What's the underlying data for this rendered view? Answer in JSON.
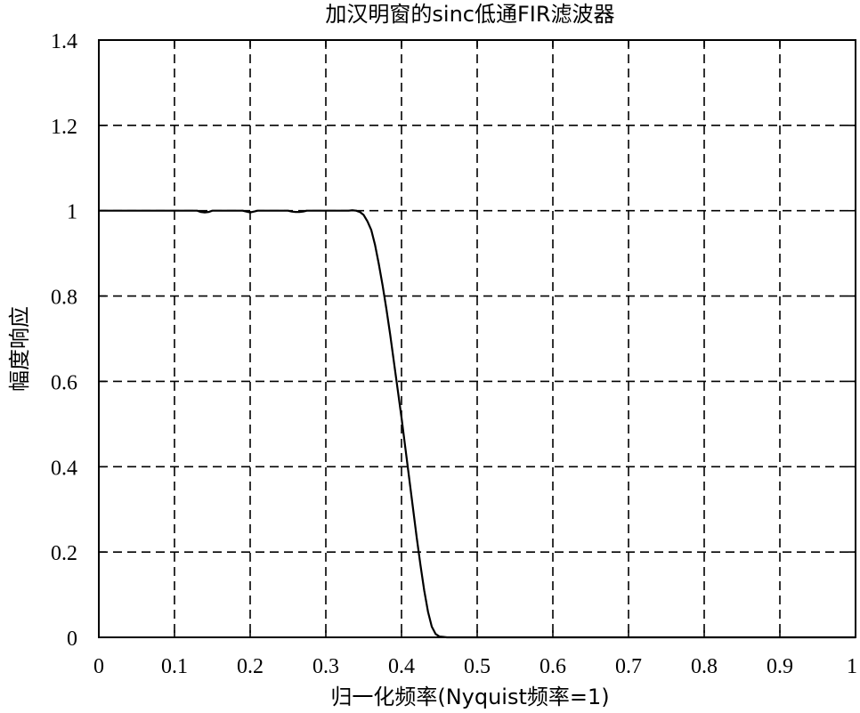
{
  "chart_data": {
    "type": "line",
    "title": "加汉明窗的sinc低通FIR滤波器",
    "xlabel": "归一化频率(Nyquist频率=1)",
    "ylabel": "幅度响应",
    "xlim": [
      0,
      1
    ],
    "ylim": [
      0,
      1.4
    ],
    "xticks": [
      0,
      0.1,
      0.2,
      0.3,
      0.4,
      0.5,
      0.6,
      0.7,
      0.8,
      0.9,
      1
    ],
    "xtick_labels": [
      "0",
      "0.1",
      "0.2",
      "0.3",
      "0.4",
      "0.5",
      "0.6",
      "0.7",
      "0.8",
      "0.9",
      "1"
    ],
    "yticks": [
      0,
      0.2,
      0.4,
      0.6,
      0.8,
      1,
      1.2,
      1.4
    ],
    "ytick_labels": [
      "0",
      "0.2",
      "0.4",
      "0.6",
      "0.8",
      "1",
      "1.2",
      "1.4"
    ],
    "grid": true,
    "grid_style": "dashed",
    "legend": "none",
    "series": [
      {
        "color": "#000000",
        "x": [
          0,
          0.12,
          0.13,
          0.135,
          0.14,
          0.145,
          0.15,
          0.19,
          0.195,
          0.2,
          0.205,
          0.21,
          0.25,
          0.255,
          0.26,
          0.265,
          0.27,
          0.275,
          0.33,
          0.335,
          0.34,
          0.345,
          0.35,
          0.355,
          0.36,
          0.365,
          0.37,
          0.375,
          0.38,
          0.385,
          0.39,
          0.395,
          0.4,
          0.405,
          0.41,
          0.415,
          0.42,
          0.425,
          0.43,
          0.435,
          0.44,
          0.445,
          0.45,
          0.455,
          0.46,
          0.47,
          0.5,
          0.6,
          0.7,
          0.8,
          0.9,
          1
        ],
        "y": [
          1,
          1,
          1,
          0.997,
          0.996,
          0.997,
          1,
          1,
          0.998,
          0.996,
          0.998,
          1,
          1,
          0.998,
          0.997,
          0.997,
          0.998,
          1,
          1,
          1.001,
          1.0,
          0.997,
          0.99,
          0.975,
          0.955,
          0.92,
          0.875,
          0.825,
          0.77,
          0.71,
          0.645,
          0.58,
          0.515,
          0.445,
          0.375,
          0.305,
          0.235,
          0.17,
          0.11,
          0.06,
          0.025,
          0.008,
          0.002,
          0.001,
          0.0,
          0.0,
          0.0,
          0.0,
          0.0,
          0.0,
          0.0,
          0.0
        ]
      }
    ]
  }
}
